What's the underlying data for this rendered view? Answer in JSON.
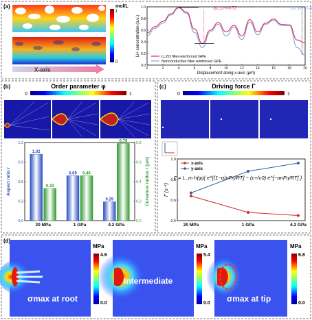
{
  "panels": {
    "a": {
      "label": "(a)",
      "unit": "mol/L",
      "cb_max": "1",
      "cb_min": "0",
      "x_axis_arrow": "X-axis"
    },
    "b": {
      "label": "(b)",
      "title": "Order parameter φ",
      "cb_min": "0",
      "cb_max": "1"
    },
    "c": {
      "label": "(c)",
      "title": "Driving force Γ",
      "cb_min": "0",
      "cb_max": "1",
      "formula": "Γ = L_m h(φ){ e^[(1−α)nFη/RT] − (c+/c0) e^[−αnFη/RT] }"
    },
    "d": {
      "label": "(d)",
      "unit": "MPa",
      "maps": [
        {
          "caption": "σmax at root",
          "max": "4.6",
          "min": "0.0"
        },
        {
          "caption": "Intermediate",
          "max": "5.4",
          "min": "0.0"
        },
        {
          "caption": "σmax at tip",
          "max": "6.8",
          "min": "0.0"
        }
      ]
    }
  },
  "chart_data": [
    {
      "type": "line",
      "panel": "a",
      "xlabel": "Displacement along x-axis (μm)",
      "ylabel": "Li+ concentration (a.u.)",
      "xlim": [
        0,
        20
      ],
      "ylim": [
        0,
        1.0
      ],
      "xticks": [
        "0",
        "2",
        "4",
        "6",
        "8",
        "10",
        "12",
        "14",
        "16",
        "18",
        "20"
      ],
      "yticks": [
        "0.0",
        "0.2",
        "0.4",
        "0.6",
        "0.8",
        "1.0"
      ],
      "annotations": [
        "Δc_Li+=0.72",
        "Δc_Li+=0.83"
      ],
      "legend_position": "bottom-left",
      "series": [
        {
          "name": "LLZO filler-reinforced GPE",
          "color": "#e0245e",
          "x": [
            0,
            1,
            2,
            3,
            4,
            5,
            6,
            7,
            8,
            9,
            10,
            11,
            12,
            13,
            14,
            15,
            16,
            17,
            18,
            19,
            20
          ],
          "values": [
            0.55,
            0.66,
            0.75,
            0.88,
            0.99,
            0.91,
            0.62,
            0.37,
            0.6,
            0.73,
            0.57,
            0.68,
            0.5,
            0.78,
            0.57,
            0.72,
            0.79,
            0.7,
            0.69,
            0.43,
            0.38
          ]
        },
        {
          "name": "Nonconductive filler-reinforced GPE",
          "color": "#7fa6d8",
          "x": [
            0,
            1,
            2,
            3,
            4,
            5,
            6,
            7,
            8,
            9,
            10,
            11,
            12,
            13,
            14,
            15,
            16,
            17,
            18,
            19,
            20
          ],
          "values": [
            0.5,
            0.63,
            0.72,
            0.86,
            0.98,
            0.89,
            0.56,
            0.3,
            0.57,
            0.7,
            0.5,
            0.65,
            0.44,
            0.74,
            0.52,
            0.7,
            0.77,
            0.68,
            0.68,
            0.3,
            0.17
          ]
        }
      ]
    },
    {
      "type": "bar",
      "panel": "b",
      "categories": [
        "20 MPa",
        "1 GPa",
        "4.2 GPa"
      ],
      "ylabel": "Aspect ratio r",
      "y2label": "Curvature radius r (μm)",
      "ylim": [
        0,
        1.2
      ],
      "y2lim": [
        0,
        0.8
      ],
      "yticks": [
        "0.0",
        "0.3",
        "0.6",
        "0.9",
        "1.2"
      ],
      "y2ticks": [
        "0.0",
        "0.2",
        "0.4",
        "0.6",
        "0.8"
      ],
      "series": [
        {
          "name": "Aspect ratio",
          "axis": "left",
          "color": "#3a5fc8",
          "values": [
            1.02,
            0.69,
            0.29
          ],
          "labels": [
            "1.02",
            "0.69",
            "0.29"
          ]
        },
        {
          "name": "Curvature radius",
          "axis": "right",
          "color": "#3aa33a",
          "values": [
            0.33,
            0.46,
            0.79
          ],
          "labels": [
            "0.33",
            "0.46",
            "0.79"
          ]
        }
      ]
    },
    {
      "type": "line",
      "panel": "c",
      "categories": [
        "20 MPa",
        "1 GPa",
        "4.2 GPa"
      ],
      "ylabel": "Γ (s⁻¹)",
      "ylim": [
        0.4,
        1.0
      ],
      "yticks": [
        "0.4",
        "0.6",
        "0.8",
        "1.0"
      ],
      "legend_position": "top-left",
      "series": [
        {
          "name": "x-axis",
          "color": "#d62828",
          "values": [
            0.64,
            0.48,
            0.45
          ]
        },
        {
          "name": "y-axis",
          "color": "#2b5fa8",
          "values": [
            0.67,
            0.88,
            0.96
          ]
        }
      ]
    }
  ]
}
